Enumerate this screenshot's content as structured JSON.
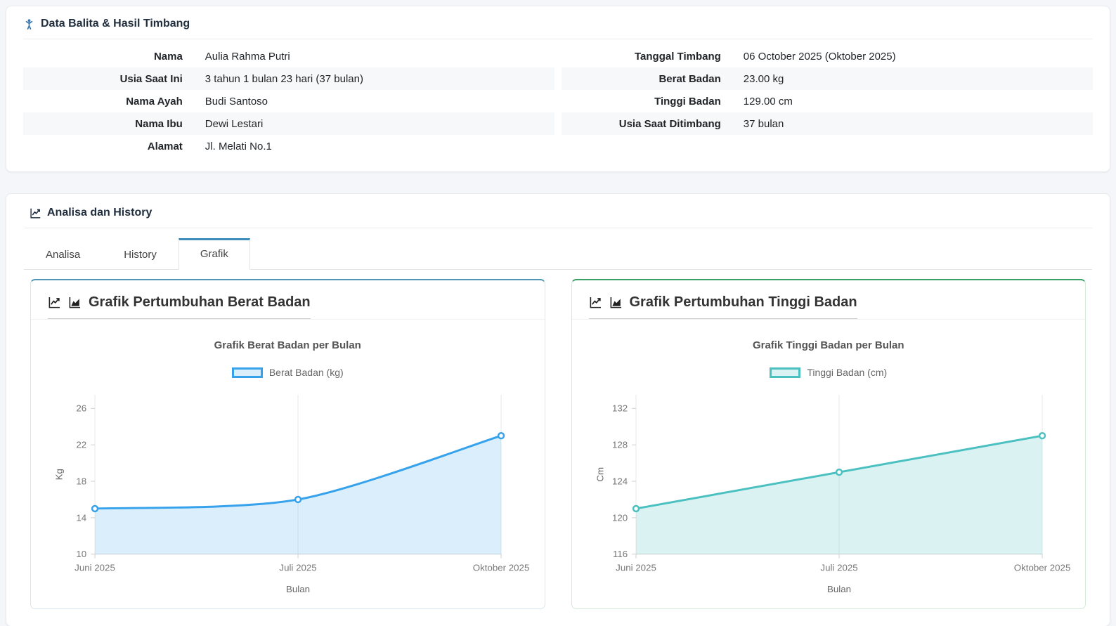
{
  "patient_card": {
    "title": "Data Balita & Hasil Timbang",
    "icon_color": "#3a76ad",
    "left_fields": [
      {
        "label": "Nama",
        "value": "Aulia Rahma Putri"
      },
      {
        "label": "Usia Saat Ini",
        "value": "3 tahun 1 bulan 23 hari (37 bulan)"
      },
      {
        "label": "Nama Ayah",
        "value": "Budi Santoso"
      },
      {
        "label": "Nama Ibu",
        "value": "Dewi Lestari"
      },
      {
        "label": "Alamat",
        "value": "Jl. Melati No.1"
      }
    ],
    "right_fields": [
      {
        "label": "Tanggal Timbang",
        "value": "06 October 2025 (Oktober 2025)"
      },
      {
        "label": "Berat Badan",
        "value": "23.00 kg"
      },
      {
        "label": "Tinggi Badan",
        "value": "129.00 cm"
      },
      {
        "label": "Usia Saat Ditimbang",
        "value": "37 bulan"
      }
    ]
  },
  "analysis_card": {
    "title": "Analisa dan History",
    "active_tab_color": "#3c8dbc",
    "tabs": [
      {
        "label": "Analisa",
        "active": false
      },
      {
        "label": "History",
        "active": false
      },
      {
        "label": "Grafik",
        "active": true
      }
    ]
  },
  "chart_data": [
    {
      "type": "area",
      "icon": "chart-line",
      "card_title": "Grafik Pertumbuhan Berat Badan",
      "title": "Grafik Berat Badan per Bulan",
      "legend": "Berat Badan (kg)",
      "categories": [
        "Juni 2025",
        "Juli 2025",
        "Oktober 2025"
      ],
      "values": [
        15,
        16,
        23
      ],
      "xlabel": "Bulan",
      "ylabel": "Kg",
      "yticks": [
        10,
        14,
        18,
        22,
        26
      ],
      "ylim": [
        10,
        27.5
      ],
      "grid": "vertical-only",
      "legend_position": "top",
      "line_color": "#36a2eb",
      "fill_color": "rgba(54,162,235,0.18)",
      "card_accent": "#4e96b3",
      "card_border": "#d9e6ee"
    },
    {
      "type": "area",
      "icon": "chart-area",
      "card_title": "Grafik Pertumbuhan Tinggi Badan",
      "title": "Grafik Tinggi Badan per Bulan",
      "legend": "Tinggi Badan (cm)",
      "categories": [
        "Juni 2025",
        "Juli 2025",
        "Oktober 2025"
      ],
      "values": [
        121,
        125,
        129
      ],
      "xlabel": "Bulan",
      "ylabel": "Cm",
      "yticks": [
        116,
        120,
        124,
        128,
        132
      ],
      "ylim": [
        116,
        133.5
      ],
      "grid": "vertical-only",
      "legend_position": "top",
      "line_color": "#4bc0c0",
      "fill_color": "rgba(75,192,192,0.2)",
      "card_accent": "#3aa066",
      "card_border": "#d4ead9"
    }
  ]
}
